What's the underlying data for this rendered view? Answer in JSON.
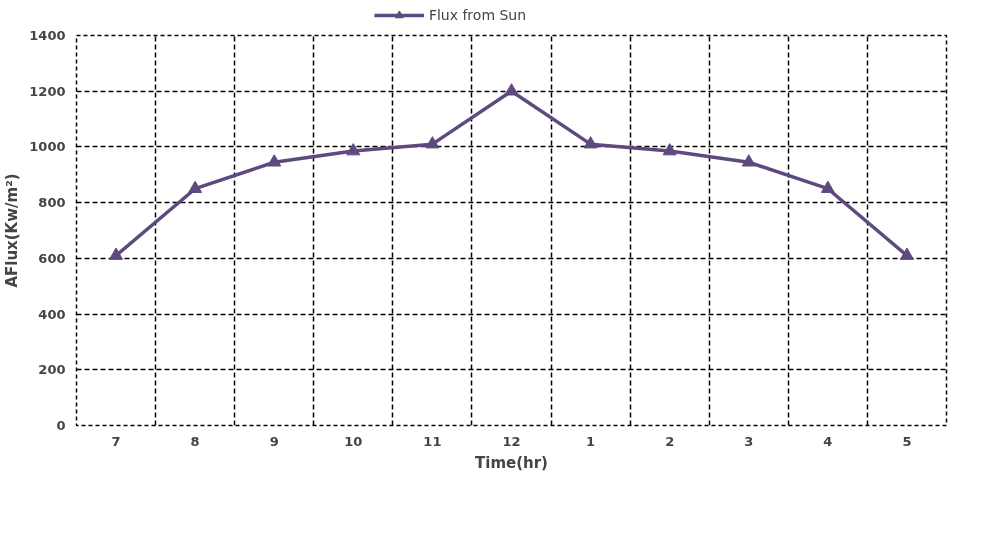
{
  "chart_data": {
    "type": "line",
    "xlabel": "Time(hr)",
    "ylabel": "AFlux(Kw/m²)",
    "categories": [
      "7",
      "8",
      "9",
      "10",
      "11",
      "12",
      "1",
      "2",
      "3",
      "4",
      "5"
    ],
    "series": [
      {
        "name": "Flux from Sun",
        "color": "#5e4a7e",
        "values": [
          610,
          850,
          945,
          985,
          1010,
          1200,
          1010,
          985,
          945,
          850,
          610
        ]
      }
    ],
    "ylim": [
      0,
      1400
    ],
    "yticks": [
      0,
      200,
      400,
      600,
      800,
      1000,
      1200,
      1400
    ],
    "grid": true,
    "legend": "top",
    "marker": "triangle",
    "line_style": "solid"
  }
}
